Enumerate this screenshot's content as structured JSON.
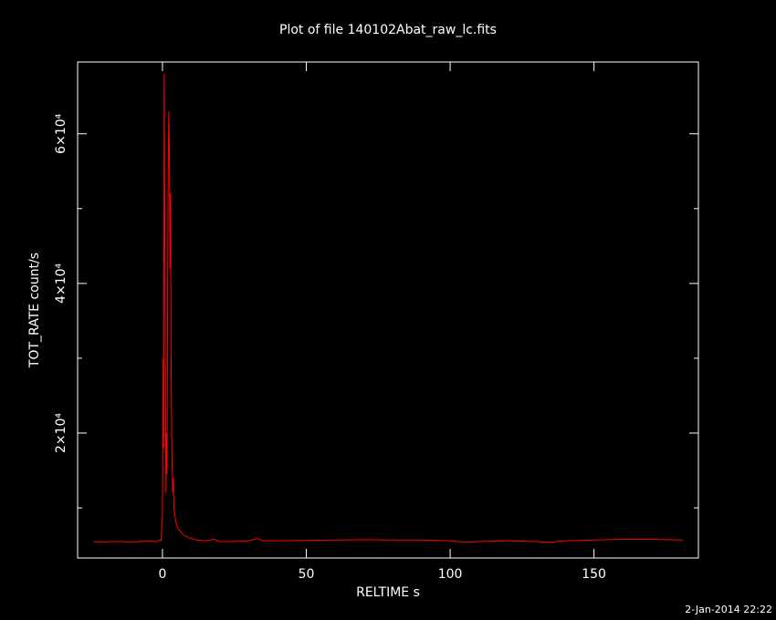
{
  "chart_data": {
    "type": "line",
    "title": "Plot of file 140102Abat_raw_lc.fits",
    "x_label": "RELTIME  s",
    "y_label": "TOT_RATE  count/s",
    "timestamp": "2-Jan-2014 22:22",
    "xlim": [
      -29.5,
      186.3
    ],
    "ylim": [
      3300,
      69600
    ],
    "xticks": [
      0,
      50,
      100,
      150
    ],
    "yticks": [
      {
        "value": 20000,
        "label": "2×10⁴"
      },
      {
        "value": 40000,
        "label": "4×10⁴"
      },
      {
        "value": 60000,
        "label": "6×10⁴"
      }
    ],
    "yticks_minor": [
      10000,
      30000,
      50000
    ],
    "series": [
      {
        "color": "#ff0000",
        "x": [
          -24,
          -20,
          -15,
          -10,
          -5,
          -2,
          -1,
          -0.5,
          0,
          0.2,
          0.4,
          0.6,
          0.8,
          1.0,
          1.2,
          1.4,
          1.6,
          1.8,
          2.0,
          2.2,
          2.4,
          2.6,
          2.8,
          3.0,
          3.2,
          3.4,
          3.6,
          3.8,
          4.0,
          4.5,
          5,
          6,
          7,
          8,
          10,
          12,
          15,
          18,
          20,
          25,
          30,
          33,
          35,
          40,
          50,
          60,
          70,
          80,
          90,
          100,
          105,
          110,
          120,
          130,
          135,
          140,
          150,
          160,
          170,
          181
        ],
        "values": [
          5500,
          5450,
          5500,
          5450,
          5550,
          5500,
          5700,
          5600,
          9000,
          30000,
          18000,
          68000,
          50000,
          30000,
          12000,
          20000,
          14500,
          40000,
          55000,
          63000,
          58000,
          42000,
          52000,
          30000,
          20000,
          15000,
          12000,
          14000,
          10000,
          8500,
          7500,
          7000,
          6500,
          6200,
          5900,
          5700,
          5600,
          5800,
          5500,
          5500,
          5600,
          5900,
          5600,
          5600,
          5650,
          5700,
          5750,
          5700,
          5700,
          5600,
          5400,
          5500,
          5600,
          5500,
          5400,
          5600,
          5700,
          5800,
          5800,
          5700
        ]
      }
    ]
  }
}
